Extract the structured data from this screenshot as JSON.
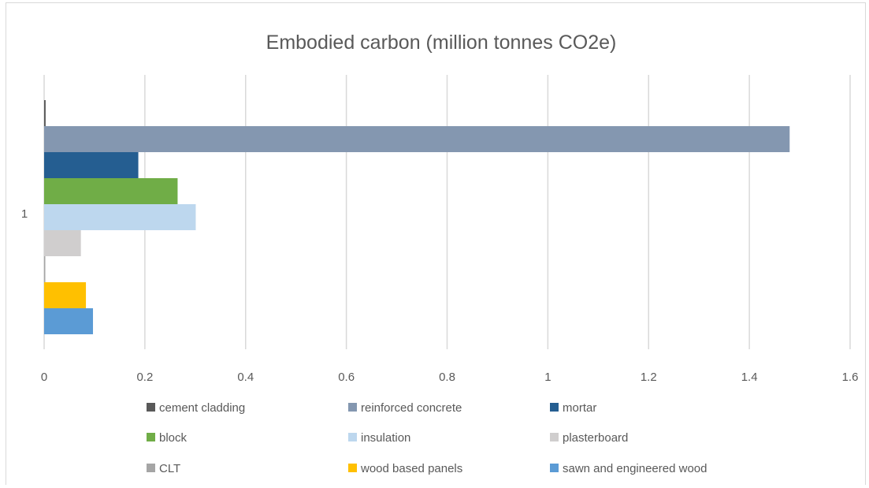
{
  "chart_data": {
    "type": "bar",
    "orientation": "horizontal",
    "title": "Embodied carbon (million tonnes CO2e)",
    "category_label": "1",
    "xlim": [
      0,
      1.6
    ],
    "x_ticks": [
      "0",
      "0.2",
      "0.4",
      "0.6",
      "0.8",
      "1",
      "1.2",
      "1.4",
      "1.6"
    ],
    "x_tick_values": [
      0,
      0.2,
      0.4,
      0.6,
      0.8,
      1.0,
      1.2,
      1.4,
      1.6
    ],
    "grid": true,
    "legend_position": "bottom",
    "series": [
      {
        "name": "cement cladding",
        "value": 0.003,
        "color": "#595959"
      },
      {
        "name": "reinforced concrete",
        "value": 1.48,
        "color": "#8497b0"
      },
      {
        "name": "mortar",
        "value": 0.187,
        "color": "#255e91"
      },
      {
        "name": "block",
        "value": 0.265,
        "color": "#70ad47"
      },
      {
        "name": "insulation",
        "value": 0.301,
        "color": "#bdd7ee"
      },
      {
        "name": "plasterboard",
        "value": 0.073,
        "color": "#d0cece"
      },
      {
        "name": "CLT",
        "value": 0.002,
        "color": "#a5a5a5"
      },
      {
        "name": "wood based panels",
        "value": 0.083,
        "color": "#ffc000"
      },
      {
        "name": "sawn and engineered wood",
        "value": 0.097,
        "color": "#5b9bd5"
      }
    ]
  }
}
